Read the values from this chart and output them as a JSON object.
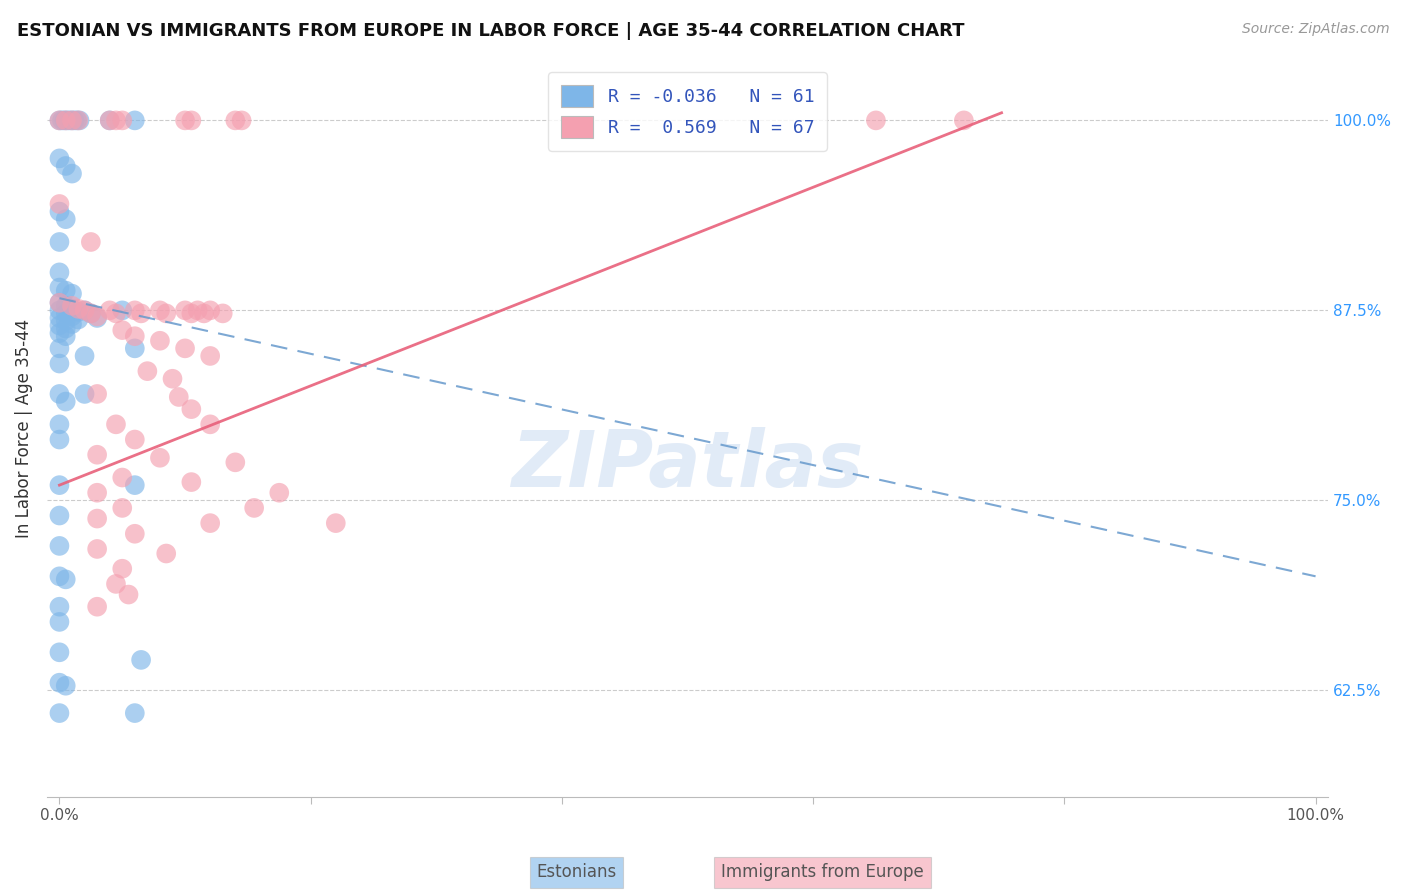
{
  "title": "ESTONIAN VS IMMIGRANTS FROM EUROPE IN LABOR FORCE | AGE 35-44 CORRELATION CHART",
  "source": "Source: ZipAtlas.com",
  "ylabel": "In Labor Force | Age 35-44",
  "xlim": [
    -0.01,
    1.01
  ],
  "ylim": [
    0.555,
    1.04
  ],
  "yticks": [
    0.625,
    0.75,
    0.875,
    1.0
  ],
  "ytick_labels": [
    "62.5%",
    "75.0%",
    "87.5%",
    "100.0%"
  ],
  "xticks": [
    0.0,
    0.2,
    0.4,
    0.6,
    0.8,
    1.0
  ],
  "xtick_labels": [
    "0.0%",
    "",
    "",
    "",
    "",
    "100.0%"
  ],
  "legend_r_blue": "-0.036",
  "legend_n_blue": "61",
  "legend_r_pink": "0.569",
  "legend_n_pink": "67",
  "blue_color": "#7EB6E8",
  "pink_color": "#F4A0B0",
  "trendline_blue_color": "#6699CC",
  "trendline_pink_color": "#E8607A",
  "watermark": "ZIPatlas",
  "blue_scatter": [
    [
      0.0,
      1.0
    ],
    [
      0.002,
      1.0
    ],
    [
      0.004,
      1.0
    ],
    [
      0.006,
      1.0
    ],
    [
      0.008,
      1.0
    ],
    [
      0.01,
      1.0
    ],
    [
      0.012,
      1.0
    ],
    [
      0.014,
      1.0
    ],
    [
      0.016,
      1.0
    ],
    [
      0.04,
      1.0
    ],
    [
      0.06,
      1.0
    ],
    [
      0.0,
      0.975
    ],
    [
      0.005,
      0.97
    ],
    [
      0.01,
      0.965
    ],
    [
      0.0,
      0.94
    ],
    [
      0.005,
      0.935
    ],
    [
      0.0,
      0.92
    ],
    [
      0.0,
      0.9
    ],
    [
      0.0,
      0.89
    ],
    [
      0.005,
      0.888
    ],
    [
      0.01,
      0.886
    ],
    [
      0.0,
      0.88
    ],
    [
      0.005,
      0.878
    ],
    [
      0.01,
      0.876
    ],
    [
      0.015,
      0.874
    ],
    [
      0.0,
      0.875
    ],
    [
      0.005,
      0.873
    ],
    [
      0.01,
      0.871
    ],
    [
      0.015,
      0.869
    ],
    [
      0.02,
      0.875
    ],
    [
      0.025,
      0.873
    ],
    [
      0.0,
      0.87
    ],
    [
      0.005,
      0.868
    ],
    [
      0.01,
      0.866
    ],
    [
      0.0,
      0.865
    ],
    [
      0.005,
      0.863
    ],
    [
      0.0,
      0.86
    ],
    [
      0.005,
      0.858
    ],
    [
      0.03,
      0.87
    ],
    [
      0.05,
      0.875
    ],
    [
      0.0,
      0.85
    ],
    [
      0.0,
      0.84
    ],
    [
      0.02,
      0.845
    ],
    [
      0.06,
      0.85
    ],
    [
      0.0,
      0.82
    ],
    [
      0.005,
      0.815
    ],
    [
      0.02,
      0.82
    ],
    [
      0.0,
      0.8
    ],
    [
      0.0,
      0.79
    ],
    [
      0.0,
      0.76
    ],
    [
      0.06,
      0.76
    ],
    [
      0.0,
      0.74
    ],
    [
      0.0,
      0.72
    ],
    [
      0.0,
      0.7
    ],
    [
      0.005,
      0.698
    ],
    [
      0.0,
      0.68
    ],
    [
      0.0,
      0.67
    ],
    [
      0.0,
      0.65
    ],
    [
      0.065,
      0.645
    ],
    [
      0.0,
      0.63
    ],
    [
      0.005,
      0.628
    ],
    [
      0.0,
      0.61
    ],
    [
      0.06,
      0.61
    ]
  ],
  "pink_scatter": [
    [
      0.0,
      1.0
    ],
    [
      0.005,
      1.0
    ],
    [
      0.01,
      1.0
    ],
    [
      0.015,
      1.0
    ],
    [
      0.04,
      1.0
    ],
    [
      0.045,
      1.0
    ],
    [
      0.05,
      1.0
    ],
    [
      0.1,
      1.0
    ],
    [
      0.105,
      1.0
    ],
    [
      0.14,
      1.0
    ],
    [
      0.145,
      1.0
    ],
    [
      0.65,
      1.0
    ],
    [
      0.72,
      1.0
    ],
    [
      0.0,
      0.945
    ],
    [
      0.025,
      0.92
    ],
    [
      0.0,
      0.88
    ],
    [
      0.01,
      0.878
    ],
    [
      0.015,
      0.876
    ],
    [
      0.02,
      0.875
    ],
    [
      0.025,
      0.873
    ],
    [
      0.03,
      0.871
    ],
    [
      0.04,
      0.875
    ],
    [
      0.045,
      0.873
    ],
    [
      0.06,
      0.875
    ],
    [
      0.065,
      0.873
    ],
    [
      0.08,
      0.875
    ],
    [
      0.085,
      0.873
    ],
    [
      0.1,
      0.875
    ],
    [
      0.105,
      0.873
    ],
    [
      0.11,
      0.875
    ],
    [
      0.115,
      0.873
    ],
    [
      0.12,
      0.875
    ],
    [
      0.13,
      0.873
    ],
    [
      0.05,
      0.862
    ],
    [
      0.06,
      0.858
    ],
    [
      0.08,
      0.855
    ],
    [
      0.1,
      0.85
    ],
    [
      0.12,
      0.845
    ],
    [
      0.07,
      0.835
    ],
    [
      0.09,
      0.83
    ],
    [
      0.03,
      0.82
    ],
    [
      0.095,
      0.818
    ],
    [
      0.105,
      0.81
    ],
    [
      0.045,
      0.8
    ],
    [
      0.12,
      0.8
    ],
    [
      0.06,
      0.79
    ],
    [
      0.03,
      0.78
    ],
    [
      0.08,
      0.778
    ],
    [
      0.14,
      0.775
    ],
    [
      0.05,
      0.765
    ],
    [
      0.105,
      0.762
    ],
    [
      0.03,
      0.755
    ],
    [
      0.175,
      0.755
    ],
    [
      0.05,
      0.745
    ],
    [
      0.03,
      0.738
    ],
    [
      0.12,
      0.735
    ],
    [
      0.06,
      0.728
    ],
    [
      0.03,
      0.718
    ],
    [
      0.085,
      0.715
    ],
    [
      0.05,
      0.705
    ],
    [
      0.045,
      0.695
    ],
    [
      0.055,
      0.688
    ],
    [
      0.03,
      0.68
    ],
    [
      0.155,
      0.745
    ],
    [
      0.22,
      0.735
    ]
  ],
  "blue_trend_x": [
    0.0,
    1.0
  ],
  "blue_trend_y": [
    0.883,
    0.7
  ],
  "pink_trend_x": [
    0.0,
    0.75
  ],
  "pink_trend_y": [
    0.76,
    1.005
  ]
}
